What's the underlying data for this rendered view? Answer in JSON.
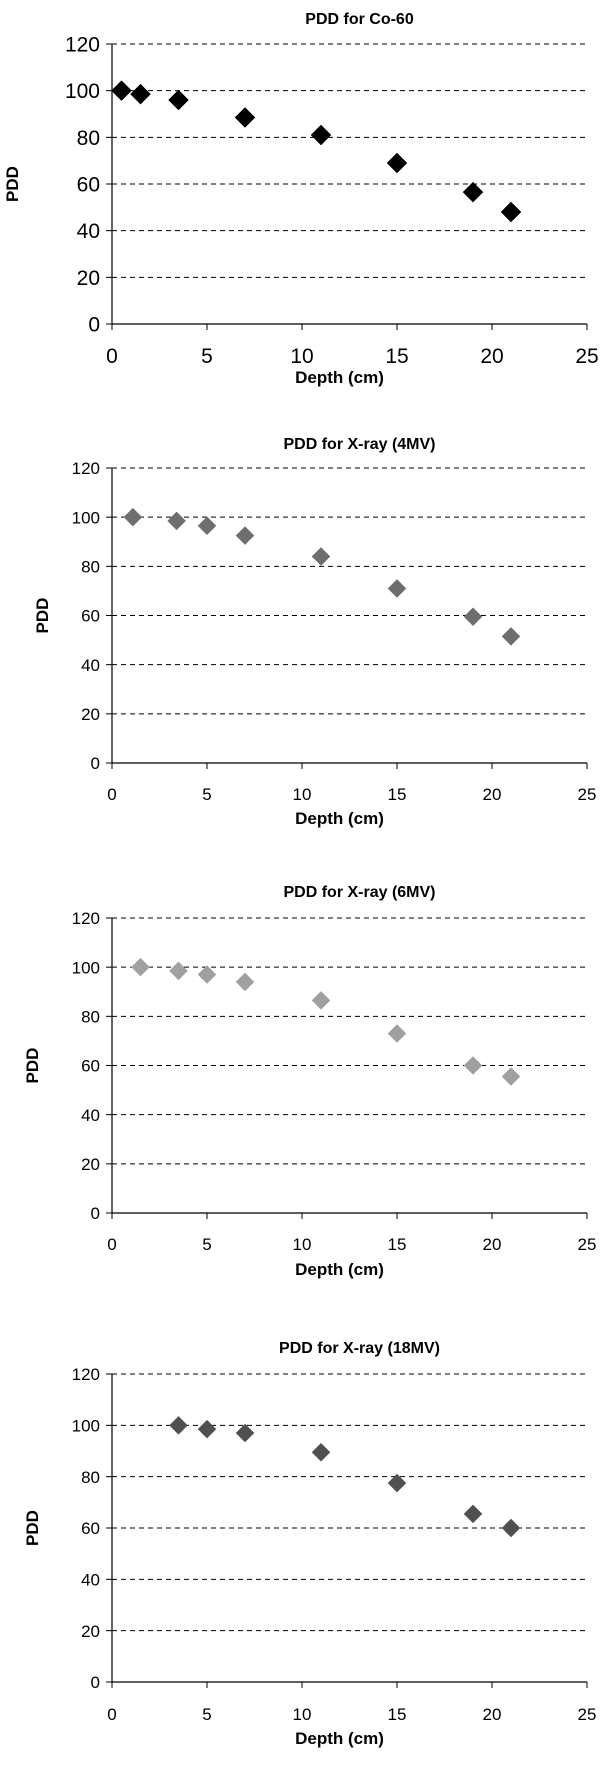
{
  "chart_data": [
    {
      "type": "scatter",
      "title": "PDD for Co-60",
      "xlabel": "Depth (cm)",
      "ylabel": "PDD",
      "xlim": [
        0,
        25
      ],
      "ylim": [
        0,
        120
      ],
      "xticks": [
        "0",
        "5",
        "10",
        "15",
        "20",
        "25"
      ],
      "yticks": [
        "0",
        "20",
        "40",
        "60",
        "80",
        "100",
        "120"
      ],
      "grid": "horizontal dashed",
      "marker_color": "#000000",
      "points": [
        {
          "x": 0.5,
          "y": 100
        },
        {
          "x": 1.5,
          "y": 98.5
        },
        {
          "x": 3.5,
          "y": 96
        },
        {
          "x": 7,
          "y": 88.5
        },
        {
          "x": 11,
          "y": 81
        },
        {
          "x": 15,
          "y": 69
        },
        {
          "x": 19,
          "y": 56.5
        },
        {
          "x": 21,
          "y": 48
        }
      ]
    },
    {
      "type": "scatter",
      "title": "PDD for X-ray (4MV)",
      "xlabel": "Depth (cm)",
      "ylabel": "PDD",
      "xlim": [
        0,
        25
      ],
      "ylim": [
        0,
        120
      ],
      "xticks": [
        "0",
        "5",
        "10",
        "15",
        "20",
        "25"
      ],
      "yticks": [
        "0",
        "20",
        "40",
        "60",
        "80",
        "100",
        "120"
      ],
      "grid": "horizontal dashed",
      "marker_color": "#6e6e6e",
      "points": [
        {
          "x": 1.1,
          "y": 100
        },
        {
          "x": 3.4,
          "y": 98.5
        },
        {
          "x": 5,
          "y": 96.5
        },
        {
          "x": 7,
          "y": 92.5
        },
        {
          "x": 11,
          "y": 84
        },
        {
          "x": 15,
          "y": 71
        },
        {
          "x": 19,
          "y": 59.5
        },
        {
          "x": 21,
          "y": 51.5
        }
      ]
    },
    {
      "type": "scatter",
      "title": "PDD for X-ray (6MV)",
      "xlabel": "Depth (cm)",
      "ylabel": "PDD",
      "xlim": [
        0,
        25
      ],
      "ylim": [
        0,
        120
      ],
      "xticks": [
        "0",
        "5",
        "10",
        "15",
        "20",
        "25"
      ],
      "yticks": [
        "0",
        "20",
        "40",
        "60",
        "80",
        "100",
        "120"
      ],
      "grid": "horizontal dashed",
      "marker_color": "#a0a0a0",
      "points": [
        {
          "x": 1.5,
          "y": 100
        },
        {
          "x": 3.5,
          "y": 98.5
        },
        {
          "x": 5,
          "y": 97
        },
        {
          "x": 7,
          "y": 94
        },
        {
          "x": 11,
          "y": 86.5
        },
        {
          "x": 15,
          "y": 73
        },
        {
          "x": 19,
          "y": 60
        },
        {
          "x": 21,
          "y": 55.5
        }
      ]
    },
    {
      "type": "scatter",
      "title": "PDD for X-ray (18MV)",
      "xlabel": "Depth (cm)",
      "ylabel": "PDD",
      "xlim": [
        0,
        25
      ],
      "ylim": [
        0,
        120
      ],
      "xticks": [
        "0",
        "5",
        "10",
        "15",
        "20",
        "25"
      ],
      "yticks": [
        "0",
        "20",
        "40",
        "60",
        "80",
        "100",
        "120"
      ],
      "grid": "horizontal dashed",
      "marker_color": "#505050",
      "points": [
        {
          "x": 3.5,
          "y": 100
        },
        {
          "x": 5,
          "y": 98.5
        },
        {
          "x": 7,
          "y": 97
        },
        {
          "x": 11,
          "y": 89.5
        },
        {
          "x": 15,
          "y": 77.5
        },
        {
          "x": 19,
          "y": 65.5
        },
        {
          "x": 21,
          "y": 60
        }
      ]
    }
  ]
}
